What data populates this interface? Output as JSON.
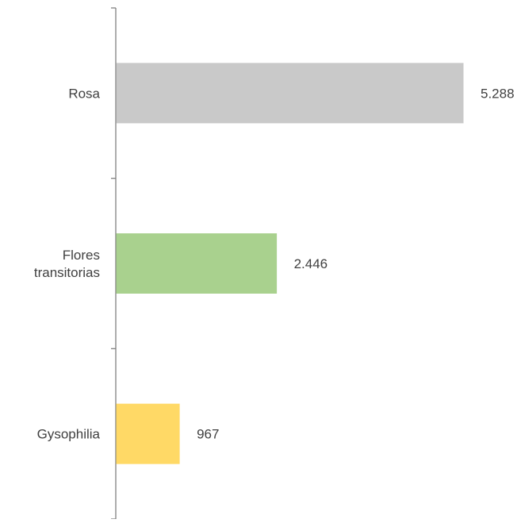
{
  "chart_data": {
    "type": "bar",
    "orientation": "horizontal",
    "title": "",
    "xlabel": "",
    "ylabel": "",
    "categories": [
      "Rosa",
      "Flores transitorias",
      "Gysophilia"
    ],
    "category_label_lines": [
      [
        "Rosa"
      ],
      [
        "Flores",
        "transitorias"
      ],
      [
        "Gysophilia"
      ]
    ],
    "values": [
      5288,
      2446,
      967
    ],
    "data_labels": [
      "5.288",
      "2.446",
      "967"
    ],
    "colors": [
      "#c9c9c9",
      "#a9d18e",
      "#ffd966"
    ],
    "xlim": [
      0,
      5500
    ],
    "grid": false,
    "legend": "none"
  }
}
